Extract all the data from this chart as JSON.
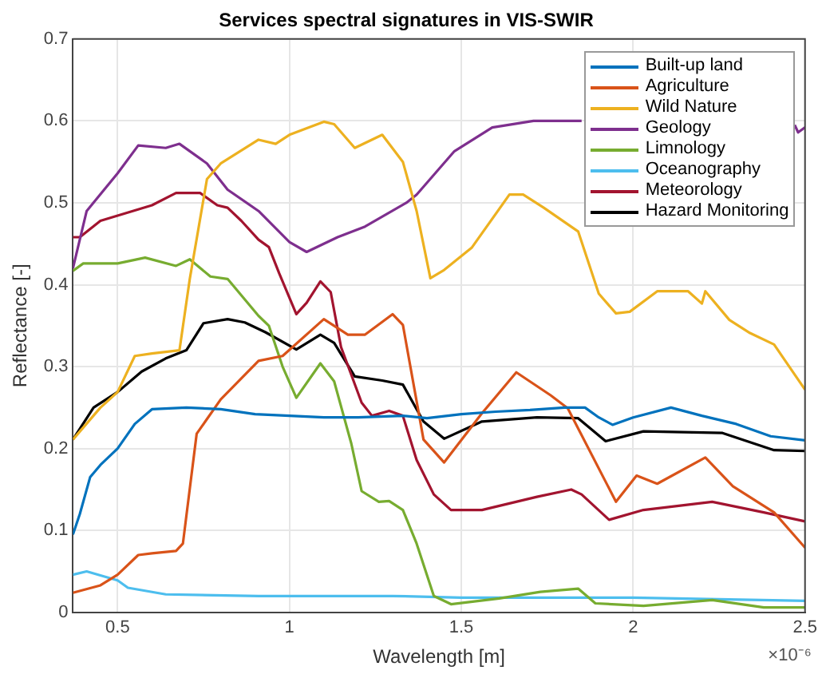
{
  "chart_data": {
    "type": "line",
    "title": "Services spectral signatures in VIS-SWIR",
    "xlabel": "Wavelength [m]",
    "ylabel": "Reflectance [-]",
    "annotations": [
      "×10⁻⁶"
    ],
    "xlim": [
      0.37,
      2.5
    ],
    "xticks": [
      0.5,
      1,
      1.5,
      2,
      2.5
    ],
    "ylim": [
      0,
      0.7
    ],
    "yticks": [
      0,
      0.1,
      0.2,
      0.3,
      0.4,
      0.5,
      0.6,
      0.7
    ],
    "grid": true,
    "legend": "top right",
    "series": [
      {
        "name": "Built-up land",
        "color": "#0072bd",
        "x": [
          0.37,
          0.39,
          0.42,
          0.45,
          0.5,
          0.55,
          0.6,
          0.7,
          0.8,
          0.9,
          1.0,
          1.1,
          1.2,
          1.33,
          1.4,
          1.5,
          1.6,
          1.7,
          1.8,
          1.86,
          1.9,
          1.94,
          2.0,
          2.11,
          2.2,
          2.3,
          2.4,
          2.5
        ],
        "values": [
          0.095,
          0.12,
          0.165,
          0.18,
          0.2,
          0.23,
          0.248,
          0.25,
          0.248,
          0.242,
          0.24,
          0.238,
          0.238,
          0.24,
          0.237,
          0.242,
          0.245,
          0.247,
          0.25,
          0.25,
          0.238,
          0.229,
          0.238,
          0.25,
          0.24,
          0.23,
          0.215,
          0.21
        ]
      },
      {
        "name": "Agriculture",
        "color": "#d95319",
        "x": [
          0.37,
          0.45,
          0.5,
          0.56,
          0.6,
          0.67,
          0.69,
          0.73,
          0.8,
          0.91,
          0.98,
          1.1,
          1.17,
          1.22,
          1.3,
          1.33,
          1.39,
          1.45,
          1.56,
          1.66,
          1.76,
          1.81,
          1.95,
          2.01,
          2.07,
          2.21,
          2.29,
          2.41,
          2.5
        ],
        "values": [
          0.024,
          0.033,
          0.046,
          0.07,
          0.072,
          0.075,
          0.084,
          0.218,
          0.26,
          0.307,
          0.313,
          0.358,
          0.339,
          0.339,
          0.364,
          0.351,
          0.211,
          0.183,
          0.243,
          0.293,
          0.265,
          0.249,
          0.135,
          0.167,
          0.157,
          0.189,
          0.154,
          0.122,
          0.079
        ]
      },
      {
        "name": "Wild Nature",
        "color": "#edb120",
        "x": [
          0.37,
          0.45,
          0.5,
          0.55,
          0.6,
          0.68,
          0.71,
          0.76,
          0.8,
          0.91,
          0.96,
          1.0,
          1.1,
          1.13,
          1.19,
          1.27,
          1.33,
          1.37,
          1.41,
          1.45,
          1.53,
          1.64,
          1.68,
          1.74,
          1.84,
          1.9,
          1.95,
          1.99,
          2.07,
          2.16,
          2.2,
          2.21,
          2.28,
          2.34,
          2.41,
          2.5
        ],
        "values": [
          0.211,
          0.25,
          0.269,
          0.313,
          0.316,
          0.32,
          0.407,
          0.529,
          0.548,
          0.577,
          0.572,
          0.583,
          0.599,
          0.596,
          0.567,
          0.583,
          0.55,
          0.49,
          0.408,
          0.418,
          0.445,
          0.51,
          0.51,
          0.494,
          0.465,
          0.389,
          0.365,
          0.367,
          0.392,
          0.392,
          0.377,
          0.392,
          0.357,
          0.341,
          0.327,
          0.272
        ]
      },
      {
        "name": "Geology",
        "color": "#7e2f8e",
        "x": [
          0.37,
          0.41,
          0.5,
          0.56,
          0.64,
          0.68,
          0.76,
          0.82,
          0.91,
          1.0,
          1.05,
          1.14,
          1.22,
          1.34,
          1.37,
          1.48,
          1.59,
          1.71,
          1.85,
          2.1,
          2.47,
          2.48,
          2.5
        ],
        "values": [
          0.42,
          0.49,
          0.536,
          0.57,
          0.567,
          0.572,
          0.548,
          0.516,
          0.49,
          0.452,
          0.44,
          0.458,
          0.471,
          0.5,
          0.51,
          0.563,
          0.592,
          0.6,
          0.6,
          null,
          0.595,
          0.586,
          0.592
        ]
      },
      {
        "name": "Limnology",
        "color": "#77ac30",
        "x": [
          0.37,
          0.4,
          0.5,
          0.58,
          0.67,
          0.71,
          0.77,
          0.82,
          0.91,
          0.94,
          0.98,
          1.02,
          1.09,
          1.13,
          1.18,
          1.21,
          1.26,
          1.29,
          1.33,
          1.37,
          1.42,
          1.47,
          1.61,
          1.73,
          1.84,
          1.89,
          2.03,
          2.23,
          2.38,
          2.5
        ],
        "values": [
          0.417,
          0.426,
          0.426,
          0.433,
          0.423,
          0.431,
          0.41,
          0.407,
          0.362,
          0.35,
          0.3,
          0.262,
          0.304,
          0.282,
          0.206,
          0.148,
          0.135,
          0.136,
          0.125,
          0.084,
          0.02,
          0.01,
          0.017,
          0.025,
          0.029,
          0.011,
          0.008,
          0.015,
          0.006,
          0.006
        ]
      },
      {
        "name": "Oceanography",
        "color": "#4dbeee",
        "x": [
          0.37,
          0.41,
          0.5,
          0.53,
          0.64,
          0.91,
          1.3,
          1.5,
          2.0,
          2.5
        ],
        "values": [
          0.046,
          0.05,
          0.039,
          0.03,
          0.022,
          0.02,
          0.02,
          0.018,
          0.018,
          0.014
        ]
      },
      {
        "name": "Meteorology",
        "color": "#a2142f",
        "x": [
          0.37,
          0.39,
          0.45,
          0.6,
          0.67,
          0.74,
          0.79,
          0.82,
          0.86,
          0.91,
          0.94,
          0.97,
          1.02,
          1.05,
          1.09,
          1.12,
          1.15,
          1.21,
          1.24,
          1.29,
          1.33,
          1.37,
          1.42,
          1.47,
          1.56,
          1.72,
          1.82,
          1.85,
          1.93,
          2.03,
          2.23,
          2.38,
          2.5
        ],
        "values": [
          0.458,
          0.458,
          0.478,
          0.497,
          0.512,
          0.512,
          0.497,
          0.494,
          0.478,
          0.455,
          0.446,
          0.414,
          0.364,
          0.378,
          0.404,
          0.391,
          0.324,
          0.256,
          0.24,
          0.246,
          0.24,
          0.186,
          0.144,
          0.125,
          0.125,
          0.141,
          0.15,
          0.144,
          0.113,
          0.125,
          0.135,
          0.122,
          0.111
        ]
      },
      {
        "name": "Hazard Monitoring",
        "color": "#000000",
        "x": [
          0.37,
          0.43,
          0.5,
          0.57,
          0.64,
          0.7,
          0.75,
          0.82,
          0.87,
          0.93,
          1.02,
          1.09,
          1.13,
          1.19,
          1.27,
          1.33,
          1.39,
          1.45,
          1.56,
          1.72,
          1.84,
          1.92,
          2.03,
          2.26,
          2.41,
          2.5
        ],
        "values": [
          0.211,
          0.25,
          0.269,
          0.294,
          0.31,
          0.32,
          0.353,
          0.358,
          0.354,
          0.342,
          0.321,
          0.339,
          0.329,
          0.288,
          0.283,
          0.278,
          0.233,
          0.212,
          0.233,
          0.238,
          0.237,
          0.209,
          0.221,
          0.219,
          0.198,
          0.197
        ]
      }
    ]
  }
}
